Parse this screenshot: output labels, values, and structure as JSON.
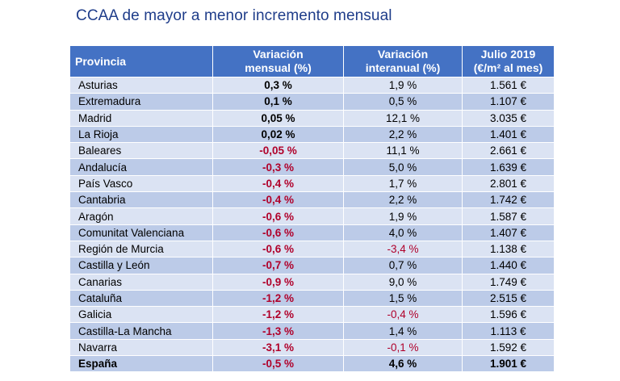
{
  "title": "CCAA de mayor a menor incremento mensual",
  "headers": {
    "provincia": "Provincia",
    "mensual_1": "Variación",
    "mensual_2": "mensual (%)",
    "interanual_1": "Variación",
    "interanual_2": "interanual (%)",
    "precio_1": "Julio 2019",
    "precio_2": "(€/m² al mes)"
  },
  "colors": {
    "header_bg": "#4472c4",
    "row_light": "#dbe3f3",
    "row_dark": "#bccbe8",
    "negative": "#b0002a",
    "title": "#1f3d8a"
  },
  "rows": [
    {
      "provincia": "Asturias",
      "mensual": "0,3 %",
      "interanual": "1,9 %",
      "precio": "1.561 €",
      "mensual_neg": false,
      "interanual_neg": false
    },
    {
      "provincia": "Extremadura",
      "mensual": "0,1 %",
      "interanual": "0,5 %",
      "precio": "1.107 €",
      "mensual_neg": false,
      "interanual_neg": false
    },
    {
      "provincia": "Madrid",
      "mensual": "0,05 %",
      "interanual": "12,1 %",
      "precio": "3.035 €",
      "mensual_neg": false,
      "interanual_neg": false
    },
    {
      "provincia": "La Rioja",
      "mensual": "0,02 %",
      "interanual": "2,2 %",
      "precio": "1.401 €",
      "mensual_neg": false,
      "interanual_neg": false
    },
    {
      "provincia": "Baleares",
      "mensual": "-0,05 %",
      "interanual": "11,1 %",
      "precio": "2.661 €",
      "mensual_neg": true,
      "interanual_neg": false
    },
    {
      "provincia": "Andalucía",
      "mensual": "-0,3 %",
      "interanual": "5,0 %",
      "precio": "1.639 €",
      "mensual_neg": true,
      "interanual_neg": false
    },
    {
      "provincia": "País Vasco",
      "mensual": "-0,4 %",
      "interanual": "1,7 %",
      "precio": "2.801 €",
      "mensual_neg": true,
      "interanual_neg": false
    },
    {
      "provincia": "Cantabria",
      "mensual": "-0,4 %",
      "interanual": "2,2 %",
      "precio": "1.742 €",
      "mensual_neg": true,
      "interanual_neg": false
    },
    {
      "provincia": "Aragón",
      "mensual": "-0,6 %",
      "interanual": "1,9 %",
      "precio": "1.587 €",
      "mensual_neg": true,
      "interanual_neg": false
    },
    {
      "provincia": "Comunitat Valenciana",
      "mensual": "-0,6 %",
      "interanual": "4,0 %",
      "precio": "1.407 €",
      "mensual_neg": true,
      "interanual_neg": false
    },
    {
      "provincia": "Región de Murcia",
      "mensual": "-0,6 %",
      "interanual": "-3,4 %",
      "precio": "1.138 €",
      "mensual_neg": true,
      "interanual_neg": true
    },
    {
      "provincia": "Castilla y León",
      "mensual": "-0,7 %",
      "interanual": "0,7 %",
      "precio": "1.440 €",
      "mensual_neg": true,
      "interanual_neg": false
    },
    {
      "provincia": "Canarias",
      "mensual": "-0,9 %",
      "interanual": "9,0 %",
      "precio": "1.749 €",
      "mensual_neg": true,
      "interanual_neg": false
    },
    {
      "provincia": "Cataluña",
      "mensual": "-1,2 %",
      "interanual": "1,5 %",
      "precio": "2.515 €",
      "mensual_neg": true,
      "interanual_neg": false
    },
    {
      "provincia": "Galicia",
      "mensual": "-1,2 %",
      "interanual": "-0,4 %",
      "precio": "1.596 €",
      "mensual_neg": true,
      "interanual_neg": true
    },
    {
      "provincia": "Castilla-La Mancha",
      "mensual": "-1,3 %",
      "interanual": "1,4 %",
      "precio": "1.113 €",
      "mensual_neg": true,
      "interanual_neg": false
    },
    {
      "provincia": "Navarra",
      "mensual": "-3,1 %",
      "interanual": "-0,1 %",
      "precio": "1.592 €",
      "mensual_neg": true,
      "interanual_neg": true
    },
    {
      "provincia": "España",
      "mensual": "-0,5 %",
      "interanual": "4,6 %",
      "precio": "1.901 €",
      "mensual_neg": true,
      "interanual_neg": false,
      "total": true
    }
  ]
}
